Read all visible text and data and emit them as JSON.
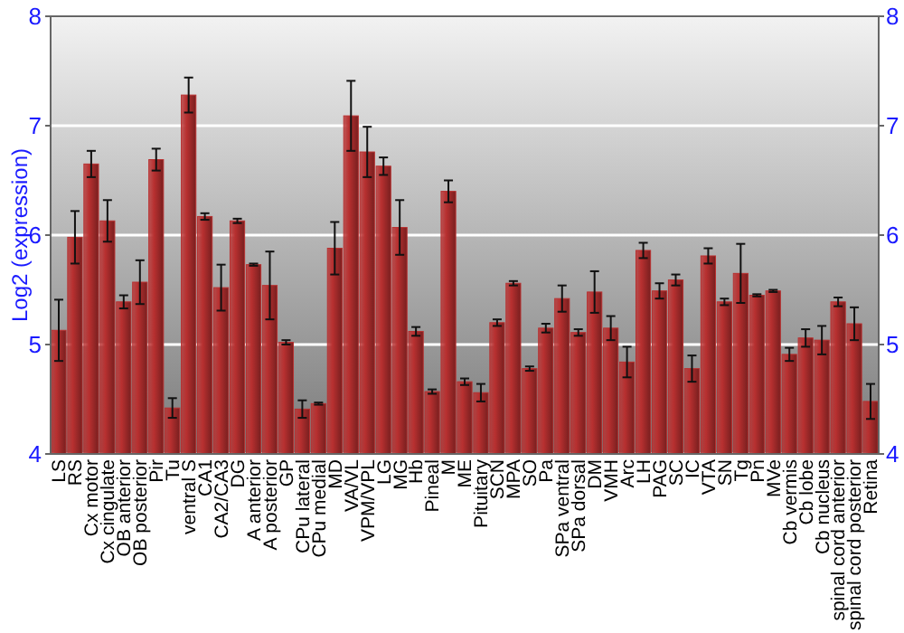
{
  "chart_data": {
    "type": "bar",
    "ylabel": "Log2 (expression)",
    "categories": [
      "LS",
      "RS",
      "Cx motor",
      "Cx cingulate",
      "OB anterior",
      "OB posterior",
      "Pir",
      "Tu",
      "ventral S",
      "CA1",
      "CA2/CA3",
      "DG",
      "A anterior",
      "A posterior",
      "GP",
      "CPu lateral",
      "CPu medial",
      "MD",
      "VA/VL",
      "VPM/VPL",
      "LG",
      "MG",
      "Hb",
      "Pineal",
      "M",
      "ME",
      "Pituitary",
      "SCN",
      "MPA",
      "SO",
      "Pa",
      "SPa ventral",
      "SPa dorsal",
      "DM",
      "VMH",
      "Arc",
      "LH",
      "PAG",
      "SC",
      "IC",
      "VTA",
      "SN",
      "Tg",
      "Pn",
      "MVe",
      "Cb vermis",
      "Cb lobe",
      "Cb nucleus",
      "spinal cord anterior",
      "spinal cord posterior",
      "Retina"
    ],
    "values": [
      5.13,
      5.98,
      6.65,
      6.13,
      5.39,
      5.57,
      6.69,
      4.42,
      7.28,
      6.17,
      5.52,
      6.13,
      5.73,
      5.54,
      5.02,
      4.41,
      4.46,
      5.88,
      7.09,
      6.76,
      6.63,
      6.07,
      5.12,
      4.57,
      6.4,
      4.66,
      4.56,
      5.2,
      5.56,
      4.78,
      5.15,
      5.42,
      5.11,
      5.48,
      5.15,
      4.84,
      5.86,
      5.49,
      5.59,
      4.78,
      5.81,
      5.39,
      5.65,
      5.45,
      5.49,
      4.91,
      5.06,
      5.04,
      5.39,
      5.19,
      4.48
    ],
    "errors": [
      0.28,
      0.24,
      0.12,
      0.19,
      0.06,
      0.2,
      0.1,
      0.09,
      0.16,
      0.03,
      0.21,
      0.02,
      0.01,
      0.31,
      0.02,
      0.08,
      0.01,
      0.24,
      0.32,
      0.23,
      0.08,
      0.25,
      0.04,
      0.02,
      0.1,
      0.03,
      0.08,
      0.03,
      0.02,
      0.02,
      0.04,
      0.12,
      0.03,
      0.19,
      0.11,
      0.14,
      0.07,
      0.07,
      0.05,
      0.12,
      0.07,
      0.03,
      0.27,
      0.01,
      0.01,
      0.06,
      0.08,
      0.13,
      0.04,
      0.15,
      0.16
    ],
    "color": "#b83030",
    "ylim": [
      4,
      8
    ],
    "yticks": [
      4,
      5,
      6,
      7,
      8
    ],
    "y2lim": [
      4,
      8
    ],
    "y2ticks": [
      4,
      5,
      6,
      7,
      8
    ],
    "grid": "y"
  }
}
